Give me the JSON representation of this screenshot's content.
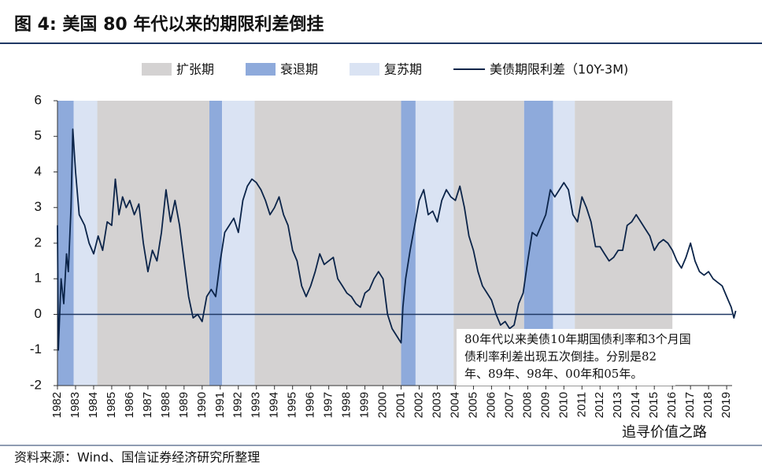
{
  "chart_data": {
    "type": "line",
    "title": "图 4: 美国 80 年代以来的期限利差倒挂",
    "source": "资料来源：Wind、国信证券经济研究所整理",
    "watermark": "追寻价值之路",
    "annotation": [
      "80年代以来美债10年期国债利率和3个月国",
      "债利率利差出现五次倒挂。分别是82",
      "年、89年、98年、00年和05年。"
    ],
    "periods": [
      {
        "name": "扩张期",
        "color": "#d4d2d2",
        "ranges": [
          [
            1984.2,
            1990.4
          ],
          [
            1992.9,
            2001.0
          ],
          [
            2003.9,
            2007.8
          ],
          [
            2010.6,
            2016.0
          ]
        ]
      },
      {
        "name": "衰退期",
        "color": "#8eaadb",
        "ranges": [
          [
            1982.0,
            1982.9
          ],
          [
            1990.4,
            1991.1
          ],
          [
            2001.0,
            2001.8
          ],
          [
            2007.8,
            2009.4
          ]
        ]
      },
      {
        "name": "复苏期",
        "color": "#dae3f3",
        "ranges": [
          [
            1982.9,
            1984.2
          ],
          [
            1991.1,
            1992.9
          ],
          [
            2001.8,
            2003.9
          ],
          [
            2009.4,
            2010.6
          ]
        ]
      }
    ],
    "x": [
      1982.0,
      1982.05,
      1982.2,
      1982.35,
      1982.5,
      1982.6,
      1982.75,
      1982.85,
      1983.0,
      1983.2,
      1983.5,
      1983.75,
      1984.0,
      1984.25,
      1984.5,
      1984.75,
      1985.0,
      1985.2,
      1985.4,
      1985.6,
      1985.8,
      1986.0,
      1986.25,
      1986.5,
      1986.75,
      1987.0,
      1987.25,
      1987.5,
      1987.75,
      1988.0,
      1988.25,
      1988.5,
      1988.75,
      1989.0,
      1989.25,
      1989.5,
      1989.75,
      1990.0,
      1990.25,
      1990.5,
      1990.75,
      1991.0,
      1991.25,
      1991.5,
      1991.75,
      1992.0,
      1992.25,
      1992.5,
      1992.75,
      1993.0,
      1993.25,
      1993.5,
      1993.75,
      1994.0,
      1994.25,
      1994.5,
      1994.75,
      1995.0,
      1995.25,
      1995.5,
      1995.75,
      1996.0,
      1996.25,
      1996.5,
      1996.75,
      1997.0,
      1997.25,
      1997.5,
      1997.75,
      1998.0,
      1998.25,
      1998.5,
      1998.75,
      1999.0,
      1999.25,
      1999.5,
      1999.75,
      2000.0,
      2000.25,
      2000.5,
      2000.75,
      2001.0,
      2001.1,
      2001.25,
      2001.5,
      2001.75,
      2002.0,
      2002.25,
      2002.5,
      2002.75,
      2003.0,
      2003.25,
      2003.5,
      2003.75,
      2004.0,
      2004.25,
      2004.5,
      2004.75,
      2005.0,
      2005.25,
      2005.5,
      2005.75,
      2006.0,
      2006.25,
      2006.5,
      2006.75,
      2007.0,
      2007.25,
      2007.5,
      2007.75,
      2008.0,
      2008.25,
      2008.5,
      2008.75,
      2009.0,
      2009.25,
      2009.5,
      2009.75,
      2010.0,
      2010.25,
      2010.5,
      2010.75,
      2011.0,
      2011.25,
      2011.5,
      2011.75,
      2012.0,
      2012.25,
      2012.5,
      2012.75,
      2013.0,
      2013.25,
      2013.5,
      2013.75,
      2014.0,
      2014.25,
      2014.5,
      2014.75,
      2015.0,
      2015.25,
      2015.5,
      2015.75,
      2016.0,
      2016.25,
      2016.5,
      2016.75,
      2017.0,
      2017.25,
      2017.5,
      2017.75,
      2018.0,
      2018.25,
      2018.5,
      2018.75,
      2019.0,
      2019.25,
      2019.4,
      2019.5
    ],
    "series": [
      {
        "name": "美债期限利差（10Y-3M)",
        "color": "#0b2449",
        "values": [
          2.5,
          -1.0,
          1.0,
          0.3,
          1.7,
          1.2,
          3.0,
          5.2,
          4.0,
          2.8,
          2.5,
          2.0,
          1.7,
          2.2,
          1.8,
          2.6,
          2.5,
          3.8,
          2.8,
          3.3,
          3.0,
          3.2,
          2.8,
          3.1,
          2.0,
          1.2,
          1.8,
          1.5,
          2.3,
          3.5,
          2.6,
          3.2,
          2.5,
          1.5,
          0.5,
          -0.1,
          0.0,
          -0.2,
          0.5,
          0.7,
          0.5,
          1.5,
          2.3,
          2.5,
          2.7,
          2.3,
          3.2,
          3.6,
          3.8,
          3.7,
          3.5,
          3.2,
          2.8,
          3.0,
          3.3,
          2.8,
          2.5,
          1.8,
          1.5,
          0.8,
          0.5,
          0.8,
          1.2,
          1.7,
          1.4,
          1.5,
          1.6,
          1.0,
          0.8,
          0.6,
          0.5,
          0.3,
          0.2,
          0.6,
          0.7,
          1.0,
          1.2,
          1.0,
          0.0,
          -0.4,
          -0.6,
          -0.8,
          0.2,
          1.0,
          1.8,
          2.5,
          3.2,
          3.5,
          2.8,
          2.9,
          2.6,
          3.2,
          3.5,
          3.3,
          3.2,
          3.6,
          3.0,
          2.2,
          1.8,
          1.2,
          0.8,
          0.6,
          0.4,
          0.0,
          -0.3,
          -0.2,
          -0.4,
          -0.3,
          0.3,
          0.6,
          1.5,
          2.3,
          2.2,
          2.5,
          2.8,
          3.5,
          3.3,
          3.5,
          3.7,
          3.5,
          2.8,
          2.6,
          3.3,
          3.0,
          2.6,
          1.9,
          1.9,
          1.7,
          1.5,
          1.6,
          1.8,
          1.8,
          2.5,
          2.6,
          2.8,
          2.6,
          2.4,
          2.2,
          1.8,
          2.0,
          2.1,
          2.0,
          1.8,
          1.5,
          1.3,
          1.6,
          2.0,
          1.5,
          1.2,
          1.1,
          1.2,
          1.0,
          0.9,
          0.8,
          0.5,
          0.2,
          -0.1,
          0.1
        ]
      }
    ],
    "xlim": [
      1982,
      2019.3
    ],
    "xticks": [
      1982,
      1983,
      1984,
      1985,
      1986,
      1987,
      1988,
      1989,
      1990,
      1991,
      1992,
      1993,
      1994,
      1995,
      1996,
      1997,
      1998,
      1999,
      2000,
      2001,
      2002,
      2003,
      2004,
      2005,
      2006,
      2007,
      2008,
      2009,
      2010,
      2011,
      2012,
      2013,
      2014,
      2015,
      2016,
      2017,
      2018,
      2019
    ],
    "ylim": [
      -2,
      6
    ],
    "yticks": [
      -2,
      -1,
      0,
      1,
      2,
      3,
      4,
      5,
      6
    ]
  }
}
